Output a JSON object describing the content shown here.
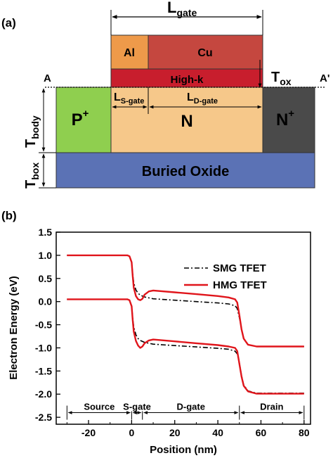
{
  "panel_a": {
    "label": "(a)",
    "regions": {
      "p_plus": {
        "text": "P",
        "sup": "+",
        "color": "#8fcf4f"
      },
      "n_channel": {
        "text": "N",
        "color": "#f6c88a"
      },
      "n_plus": {
        "text": "N",
        "sup": "+",
        "color": "#4a4a4a"
      },
      "buried_oxide": {
        "text": "Buried Oxide",
        "color": "#5b72b5"
      },
      "high_k": {
        "text": "High-k",
        "color": "#c81e2d"
      },
      "al_gate": {
        "text": "Al",
        "color": "#ee9a4a"
      },
      "cu_gate": {
        "text": "Cu",
        "color": "#c5473f"
      }
    },
    "dims": {
      "l_gate": {
        "main": "L",
        "sub": "gate"
      },
      "l_s_gate": {
        "main": "L",
        "sub": "S-gate"
      },
      "l_d_gate": {
        "main": "L",
        "sub": "D-gate"
      },
      "t_ox": {
        "main": "T",
        "sub": "ox"
      },
      "t_body": {
        "main": "T",
        "sub": "body"
      },
      "t_box": {
        "main": "T",
        "sub": "box"
      }
    },
    "cut_labels": {
      "left": "A",
      "right": "A'"
    }
  },
  "panel_b": {
    "label": "(b)",
    "regions": [
      "Source",
      "S-gate",
      "D-gate",
      "Drain"
    ]
  },
  "chart_data": {
    "type": "line",
    "title": "",
    "xlabel": "Position (nm)",
    "ylabel": "Electron Energy (eV)",
    "xlim": [
      -35,
      83
    ],
    "ylim": [
      -2.65,
      1.5
    ],
    "xticks": [
      -20,
      0,
      20,
      40,
      60,
      80
    ],
    "yticks": [
      1.5,
      1.0,
      0.5,
      0.0,
      -0.5,
      -1.0,
      -1.5,
      -2.0,
      -2.5
    ],
    "ytick_labels": [
      "1.5",
      "1.0",
      "0.5",
      "0.0",
      "-0.5",
      "-1.0",
      "-1.5",
      "-2.0",
      "-2.5"
    ],
    "region_boundaries": [
      -30,
      0,
      5,
      50,
      80
    ],
    "legend_position": "top-right",
    "series": [
      {
        "name": "SMG TFET",
        "style": "dash-dot",
        "color": "#000000",
        "bands": [
          {
            "x": [
              -30,
              -2,
              -1,
              0,
              0.5,
              1,
              2,
              3,
              4,
              6,
              10,
              20,
              30,
              40,
              45,
              48,
              49,
              50,
              51,
              52,
              54,
              58,
              80
            ],
            "y": [
              1.0,
              1.0,
              0.98,
              0.85,
              0.6,
              0.4,
              0.25,
              0.18,
              0.14,
              0.1,
              0.06,
              0.03,
              0.0,
              -0.03,
              -0.05,
              -0.09,
              -0.15,
              -0.35,
              -0.6,
              -0.8,
              -0.93,
              -0.97,
              -0.97
            ]
          },
          {
            "x": [
              -30,
              -2,
              -1,
              0,
              0.5,
              1,
              2,
              3,
              4,
              6,
              10,
              20,
              30,
              40,
              45,
              48,
              49,
              50,
              51,
              52,
              54,
              58,
              80
            ],
            "y": [
              0.05,
              0.05,
              0.03,
              -0.1,
              -0.35,
              -0.55,
              -0.72,
              -0.8,
              -0.84,
              -0.88,
              -0.92,
              -0.95,
              -0.98,
              -1.01,
              -1.03,
              -1.07,
              -1.13,
              -1.33,
              -1.6,
              -1.8,
              -1.93,
              -1.98,
              -1.98
            ]
          }
        ]
      },
      {
        "name": "HMG TFET",
        "style": "solid",
        "color": "#e0151b",
        "bands": [
          {
            "x": [
              -30,
              -2,
              -1,
              0,
              0.5,
              1,
              2,
              3,
              4,
              5,
              6,
              8,
              10,
              20,
              30,
              40,
              45,
              48,
              49,
              50,
              51,
              52,
              54,
              58,
              80
            ],
            "y": [
              1.0,
              1.0,
              0.98,
              0.85,
              0.55,
              0.3,
              0.12,
              0.05,
              0.03,
              0.06,
              0.15,
              0.22,
              0.24,
              0.2,
              0.16,
              0.12,
              0.09,
              0.05,
              -0.02,
              -0.3,
              -0.6,
              -0.8,
              -0.93,
              -0.97,
              -0.97
            ]
          },
          {
            "x": [
              -30,
              -2,
              -1,
              0,
              0.5,
              1,
              2,
              3,
              4,
              5,
              6,
              8,
              10,
              20,
              30,
              40,
              45,
              48,
              49,
              50,
              51,
              52,
              54,
              58,
              80
            ],
            "y": [
              0.05,
              0.05,
              0.03,
              -0.1,
              -0.4,
              -0.65,
              -0.85,
              -0.95,
              -1.0,
              -0.97,
              -0.9,
              -0.84,
              -0.82,
              -0.86,
              -0.9,
              -0.94,
              -0.97,
              -1.0,
              -1.07,
              -1.35,
              -1.62,
              -1.82,
              -1.94,
              -1.99,
              -1.99
            ]
          }
        ]
      }
    ]
  }
}
